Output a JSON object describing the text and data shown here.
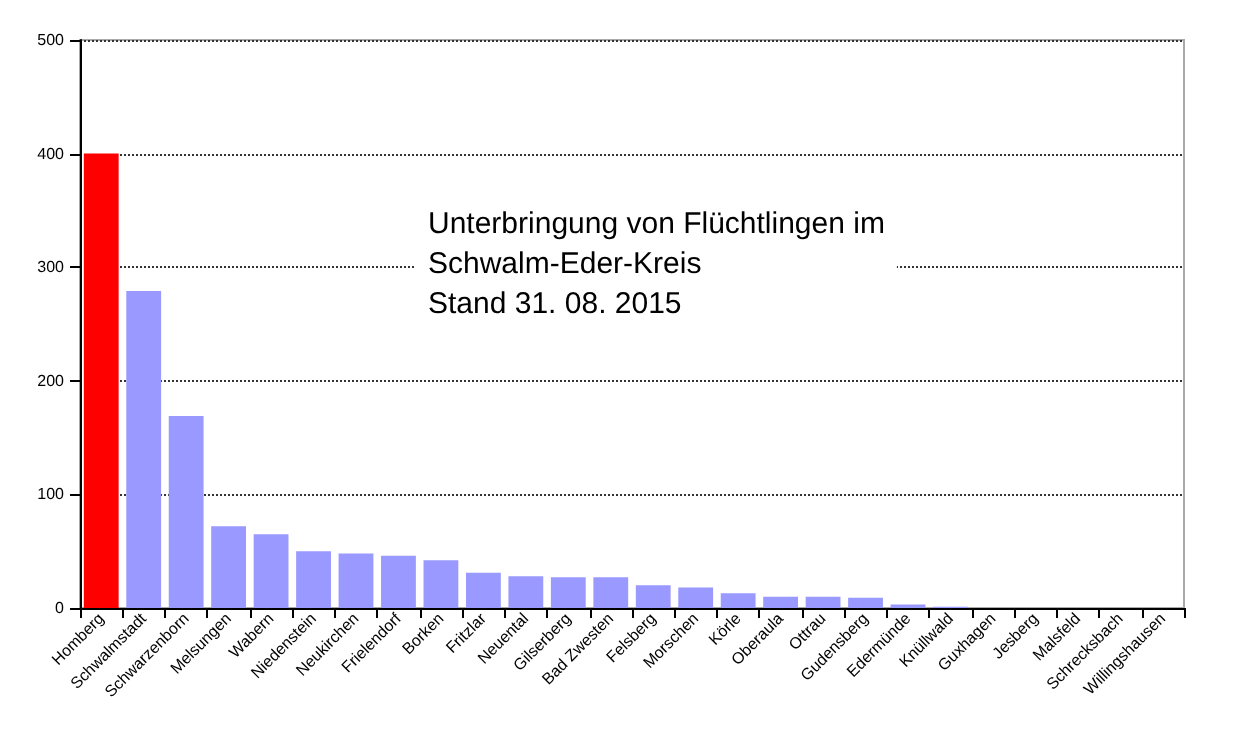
{
  "chart_data": {
    "type": "bar",
    "title": "Unterbringung von Flüchtlingen im\nSchwalm-Eder-Kreis\nStand 31. 08. 2015",
    "categories": [
      "Homberg",
      "Schwalmstadt",
      "Schwarzenborn",
      "Melsungen",
      "Wabern",
      "Niedenstein",
      "Neukirchen",
      "Frielendorf",
      "Borken",
      "Fritzlar",
      "Neuental",
      "Gilserberg",
      "Bad Zwesten",
      "Felsberg",
      "Morschen",
      "Körle",
      "Oberaula",
      "Ottrau",
      "Gudensberg",
      "Edermünde",
      "Knüllwald",
      "Guxhagen",
      "Jesberg",
      "Malsfeld",
      "Schrecksbach",
      "Willingshausen"
    ],
    "values": [
      400,
      279,
      169,
      72,
      65,
      50,
      48,
      46,
      42,
      31,
      28,
      27,
      27,
      20,
      18,
      13,
      10,
      10,
      9,
      3,
      1,
      0,
      0,
      0,
      0,
      0
    ],
    "colors": [
      "#ff0000",
      "#9999ff",
      "#9999ff",
      "#9999ff",
      "#9999ff",
      "#9999ff",
      "#9999ff",
      "#9999ff",
      "#9999ff",
      "#9999ff",
      "#9999ff",
      "#9999ff",
      "#9999ff",
      "#9999ff",
      "#9999ff",
      "#9999ff",
      "#9999ff",
      "#9999ff",
      "#9999ff",
      "#9999ff",
      "#9999ff",
      "#9999ff",
      "#9999ff",
      "#9999ff",
      "#9999ff",
      "#9999ff"
    ],
    "ylim": [
      0,
      500
    ],
    "yticks": [
      0,
      100,
      200,
      300,
      400,
      500
    ],
    "grid": "y"
  }
}
